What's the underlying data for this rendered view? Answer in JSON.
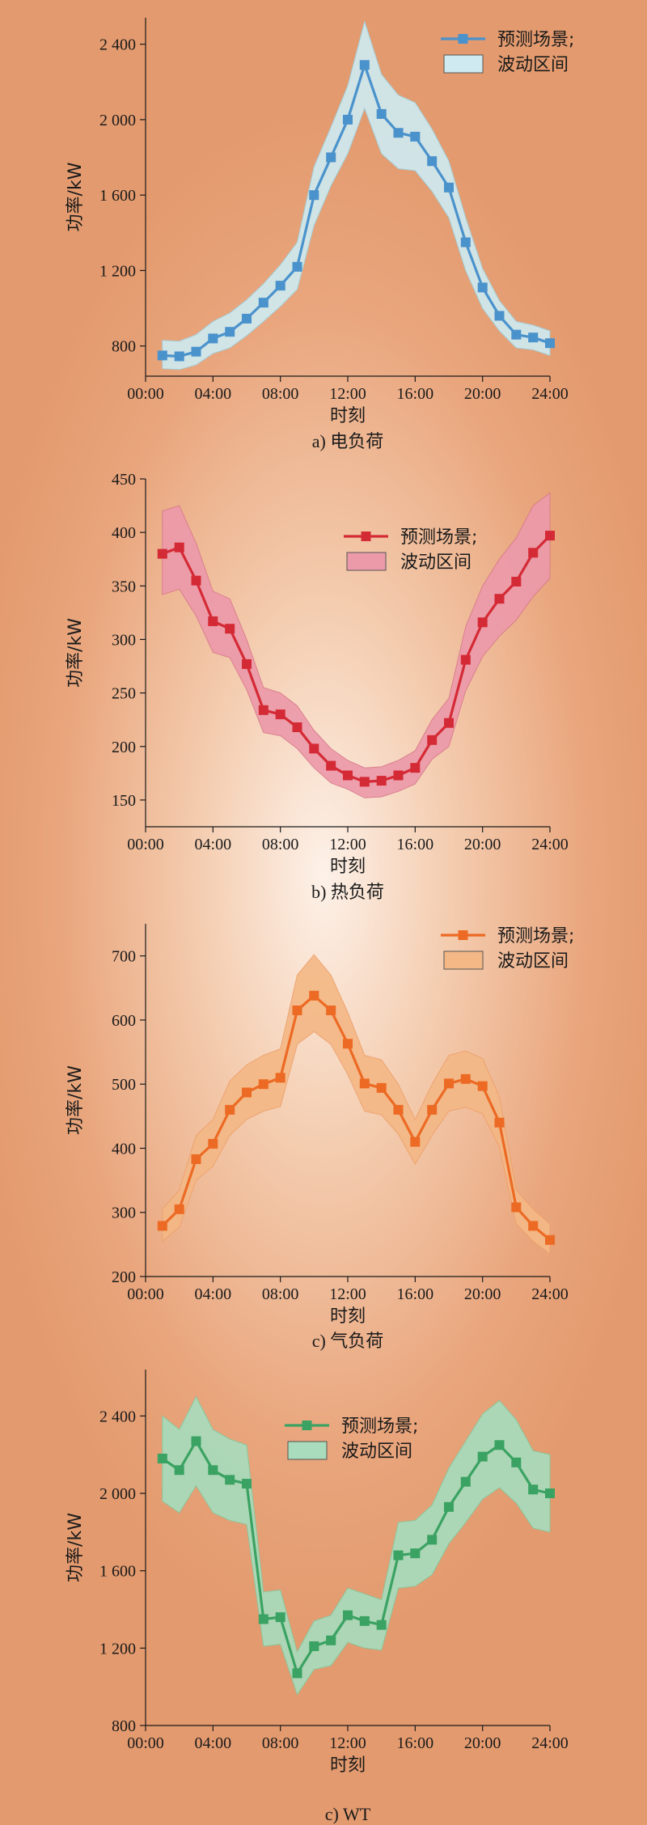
{
  "chart_data": [
    {
      "type": "line",
      "caption": "a) 电负荷",
      "xlabel": "时刻",
      "ylabel": "功率/kW",
      "xticks": [
        "00:00",
        "04:00",
        "08:00",
        "12:00",
        "16:00",
        "20:00",
        "24:00"
      ],
      "xlim": [
        0,
        24
      ],
      "ylim": [
        640,
        2540
      ],
      "yticks": [
        800,
        1200,
        1600,
        2000,
        2400
      ],
      "ytick_labels": [
        "800",
        "1 200",
        "1 600",
        "2 000",
        "2 400"
      ],
      "legend": {
        "position": "top-right",
        "series_label": "预测场景;",
        "band_label": "波动区间"
      },
      "colors": {
        "line": "#4a92cc",
        "band": "#cfeaf0",
        "band_edge": "#9fd2e0"
      },
      "x": [
        1,
        2,
        3,
        4,
        5,
        6,
        7,
        8,
        9,
        10,
        11,
        12,
        13,
        14,
        15,
        16,
        17,
        18,
        19,
        20,
        21,
        22,
        23,
        24
      ],
      "values": [
        750,
        745,
        770,
        840,
        875,
        945,
        1030,
        1120,
        1220,
        1600,
        1800,
        2000,
        2290,
        2030,
        1930,
        1910,
        1780,
        1640,
        1350,
        1110,
        960,
        860,
        845,
        815
      ],
      "band_upper": [
        830,
        825,
        860,
        930,
        975,
        1045,
        1130,
        1230,
        1350,
        1750,
        1960,
        2180,
        2520,
        2240,
        2130,
        2090,
        1950,
        1780,
        1480,
        1210,
        1040,
        930,
        910,
        880
      ],
      "band_lower": [
        680,
        675,
        700,
        760,
        790,
        855,
        930,
        1010,
        1100,
        1440,
        1650,
        1820,
        2060,
        1820,
        1740,
        1730,
        1620,
        1480,
        1200,
        1000,
        880,
        790,
        780,
        750
      ]
    },
    {
      "type": "line",
      "caption": "b) 热负荷",
      "xlabel": "时刻",
      "ylabel": "功率/kW",
      "xticks": [
        "00:00",
        "04:00",
        "08:00",
        "12:00",
        "16:00",
        "20:00",
        "24:00"
      ],
      "xlim": [
        0,
        24
      ],
      "ylim": [
        125,
        450
      ],
      "yticks": [
        150,
        200,
        250,
        300,
        350,
        400,
        450
      ],
      "ytick_labels": [
        "150",
        "200",
        "250",
        "300",
        "350",
        "400",
        "450"
      ],
      "legend": {
        "position": "top-center",
        "series_label": "预测场景;",
        "band_label": "波动区间"
      },
      "colors": {
        "line": "#d42a35",
        "band": "#ec9aaa",
        "band_edge": "#d87a8a"
      },
      "x": [
        1,
        2,
        3,
        4,
        5,
        6,
        7,
        8,
        9,
        10,
        11,
        12,
        13,
        14,
        15,
        16,
        17,
        18,
        19,
        20,
        21,
        22,
        23,
        24
      ],
      "values": [
        380,
        386,
        355,
        317,
        310,
        277,
        234,
        230,
        218,
        198,
        182,
        173,
        167,
        168,
        173,
        180,
        206,
        222,
        281,
        316,
        338,
        354,
        381,
        397
      ],
      "band_upper": [
        420,
        425,
        390,
        345,
        338,
        300,
        255,
        250,
        238,
        215,
        198,
        187,
        180,
        181,
        187,
        196,
        225,
        245,
        312,
        350,
        375,
        395,
        425,
        437
      ],
      "band_lower": [
        342,
        347,
        322,
        288,
        283,
        253,
        213,
        210,
        198,
        180,
        166,
        160,
        152,
        153,
        158,
        165,
        188,
        200,
        252,
        284,
        303,
        318,
        340,
        357
      ]
    },
    {
      "type": "line",
      "caption": "c) 气负荷",
      "xlabel": "时刻",
      "ylabel": "功率/kW",
      "xticks": [
        "00:00",
        "04:00",
        "08:00",
        "12:00",
        "16:00",
        "20:00",
        "24:00"
      ],
      "xlim": [
        0,
        24
      ],
      "ylim": [
        200,
        750
      ],
      "yticks": [
        200,
        300,
        400,
        500,
        600,
        700
      ],
      "ytick_labels": [
        "200",
        "300",
        "400",
        "500",
        "600",
        "700"
      ],
      "legend": {
        "position": "top-right",
        "series_label": "预测场景;",
        "band_label": "波动区间"
      },
      "colors": {
        "line": "#ec6a24",
        "band": "#f4b886",
        "band_edge": "#eda06c"
      },
      "x": [
        1,
        2,
        3,
        4,
        5,
        6,
        7,
        8,
        9,
        10,
        11,
        12,
        13,
        14,
        15,
        16,
        17,
        18,
        19,
        20,
        21,
        22,
        23,
        24
      ],
      "values": [
        279,
        305,
        383,
        407,
        460,
        487,
        500,
        510,
        615,
        638,
        615,
        563,
        501,
        494,
        460,
        410,
        460,
        501,
        508,
        497,
        440,
        308,
        279,
        257
      ],
      "band_upper": [
        305,
        335,
        420,
        445,
        505,
        530,
        545,
        555,
        670,
        702,
        670,
        612,
        545,
        538,
        500,
        445,
        500,
        545,
        552,
        540,
        480,
        335,
        305,
        282
      ],
      "band_lower": [
        255,
        277,
        350,
        372,
        420,
        445,
        458,
        465,
        562,
        582,
        562,
        515,
        458,
        452,
        422,
        375,
        420,
        458,
        464,
        454,
        402,
        282,
        255,
        235
      ]
    },
    {
      "type": "line",
      "caption": "c) WT",
      "xlabel": "时刻",
      "ylabel": "功率/kW",
      "xticks": [
        "00:00",
        "04:00",
        "08:00",
        "12:00",
        "16:00",
        "20:00",
        "24:00"
      ],
      "xlim": [
        0,
        24
      ],
      "ylim": [
        800,
        2640
      ],
      "yticks": [
        800,
        1200,
        1600,
        2000,
        2400
      ],
      "ytick_labels": [
        "800",
        "1 200",
        "1 600",
        "2 000",
        "2 400"
      ],
      "legend": {
        "position": "top-center",
        "series_label": "预测场景;",
        "band_label": "波动区间"
      },
      "colors": {
        "line": "#3aa262",
        "band": "#a8dcbc",
        "band_edge": "#85c9a0"
      },
      "x": [
        1,
        2,
        3,
        4,
        5,
        6,
        7,
        8,
        9,
        10,
        11,
        12,
        13,
        14,
        15,
        16,
        17,
        18,
        19,
        20,
        21,
        22,
        23,
        24
      ],
      "values": [
        2180,
        2120,
        2270,
        2120,
        2070,
        2050,
        1350,
        1360,
        1070,
        1210,
        1240,
        1370,
        1340,
        1320,
        1680,
        1690,
        1760,
        1930,
        2060,
        2190,
        2250,
        2160,
        2020,
        2000
      ],
      "band_upper": [
        2400,
        2330,
        2500,
        2330,
        2280,
        2250,
        1490,
        1500,
        1180,
        1340,
        1370,
        1510,
        1480,
        1450,
        1850,
        1860,
        1940,
        2130,
        2270,
        2410,
        2480,
        2380,
        2220,
        2200
      ],
      "band_lower": [
        1960,
        1900,
        2040,
        1900,
        1860,
        1840,
        1210,
        1220,
        960,
        1090,
        1110,
        1230,
        1200,
        1190,
        1510,
        1520,
        1580,
        1740,
        1850,
        1970,
        2030,
        1950,
        1820,
        1800
      ]
    }
  ]
}
